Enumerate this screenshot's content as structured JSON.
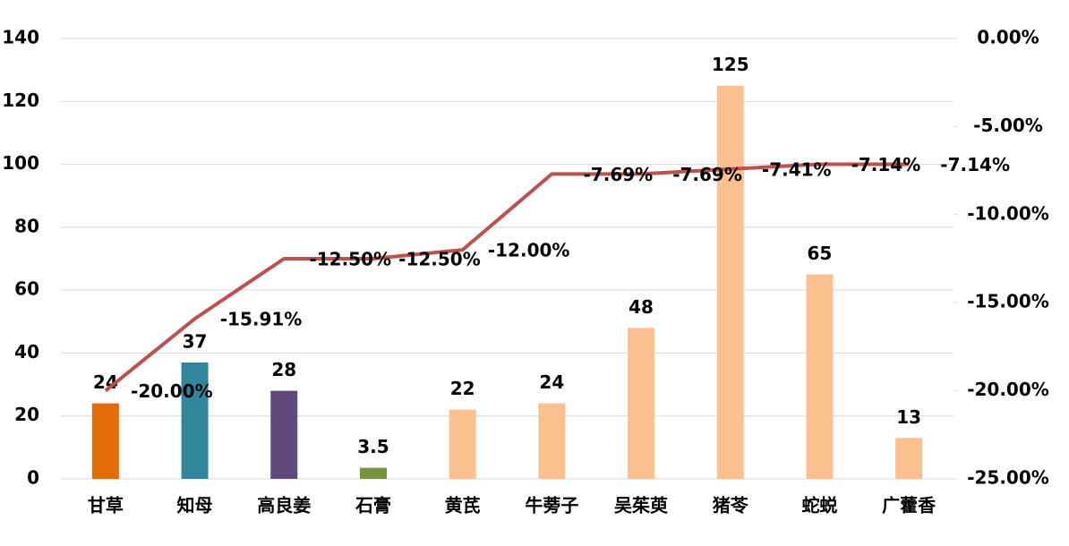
{
  "chart_data": {
    "type": "bar",
    "categories": [
      "甘草",
      "知母",
      "高良姜",
      "石膏",
      "黄芪",
      "牛蒡子",
      "吴茱萸",
      "猪苓",
      "蛇蜕",
      "广藿香"
    ],
    "series": [
      {
        "type": "bar",
        "colors": [
          "#e36c09",
          "#31859c",
          "#604a7b",
          "#77933c",
          "#fac090",
          "#fac090",
          "#fac090",
          "#fac090",
          "#fac090",
          "#fac090"
        ],
        "values": [
          24,
          37,
          28,
          3.5,
          22,
          24,
          48,
          125,
          65,
          13
        ]
      },
      {
        "type": "line",
        "axis": "y2",
        "color": "#c0504d",
        "values": [
          -20,
          -15.91,
          -12.5,
          -12.5,
          -12,
          -7.69,
          -7.69,
          -7.41,
          -7.14,
          -7.14
        ],
        "value_labels": [
          "-20.00%",
          "-15.91%",
          "-12.50%",
          "-12.50%",
          "-12.00%",
          "-7.69%",
          "-7.69%",
          "-7.41%",
          "-7.14%",
          "-7.14%"
        ]
      }
    ],
    "ylim": [
      0,
      140
    ],
    "yticks": [
      0,
      20,
      40,
      60,
      80,
      100,
      120,
      140
    ],
    "y2lim": [
      -25,
      0
    ],
    "y2ticks": [
      {
        "value": -25,
        "label": "-25.00%"
      },
      {
        "value": -20,
        "label": "-20.00%"
      },
      {
        "value": -15,
        "label": "-15.00%"
      },
      {
        "value": -10,
        "label": "-10.00%"
      },
      {
        "value": -5,
        "label": "-5.00%"
      },
      {
        "value": 0,
        "label": "0.00%"
      }
    ],
    "grid": true
  }
}
